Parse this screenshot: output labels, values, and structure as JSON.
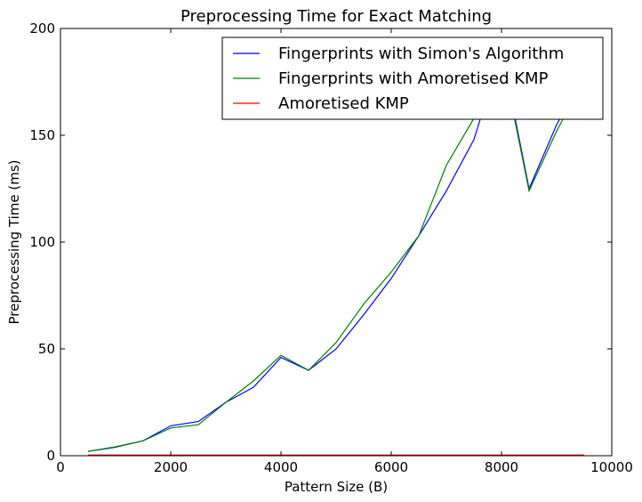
{
  "chart_data": {
    "type": "line",
    "title": "Preprocessing Time for Exact Matching",
    "xlabel": "Pattern Size (B)",
    "ylabel": "Preprocessing Time (ms)",
    "xlim": [
      0,
      10000
    ],
    "ylim": [
      0,
      200
    ],
    "xticks": [
      0,
      2000,
      4000,
      6000,
      8000,
      10000
    ],
    "yticks": [
      0,
      50,
      100,
      150,
      200
    ],
    "grid": false,
    "legend_position": "top-right",
    "x": [
      500,
      1000,
      1500,
      2000,
      2500,
      3000,
      3500,
      4000,
      4500,
      5000,
      5500,
      6000,
      6500,
      7000,
      7500,
      8000,
      8500,
      9000,
      9500
    ],
    "series": [
      {
        "name": "Fingerprints with Simon's Algorithm",
        "color": "#0000ff",
        "values": [
          2,
          4,
          7,
          14,
          16,
          25,
          32,
          46,
          40,
          50,
          66,
          83,
          103,
          124,
          148,
          190,
          125,
          155,
          178
        ]
      },
      {
        "name": "Fingerprints with Amoretised KMP",
        "color": "#008000",
        "values": [
          2,
          4.2,
          7,
          13,
          14.5,
          25,
          35,
          47,
          40,
          53,
          71,
          86,
          103,
          136,
          158,
          188,
          124,
          152,
          176
        ]
      },
      {
        "name": "Amoretised KMP",
        "color": "#ff0000",
        "values": [
          0.3,
          0.3,
          0.3,
          0.3,
          0.3,
          0.3,
          0.3,
          0.3,
          0.3,
          0.3,
          0.3,
          0.3,
          0.3,
          0.3,
          0.3,
          0.3,
          0.3,
          0.3,
          0.3
        ]
      }
    ]
  }
}
